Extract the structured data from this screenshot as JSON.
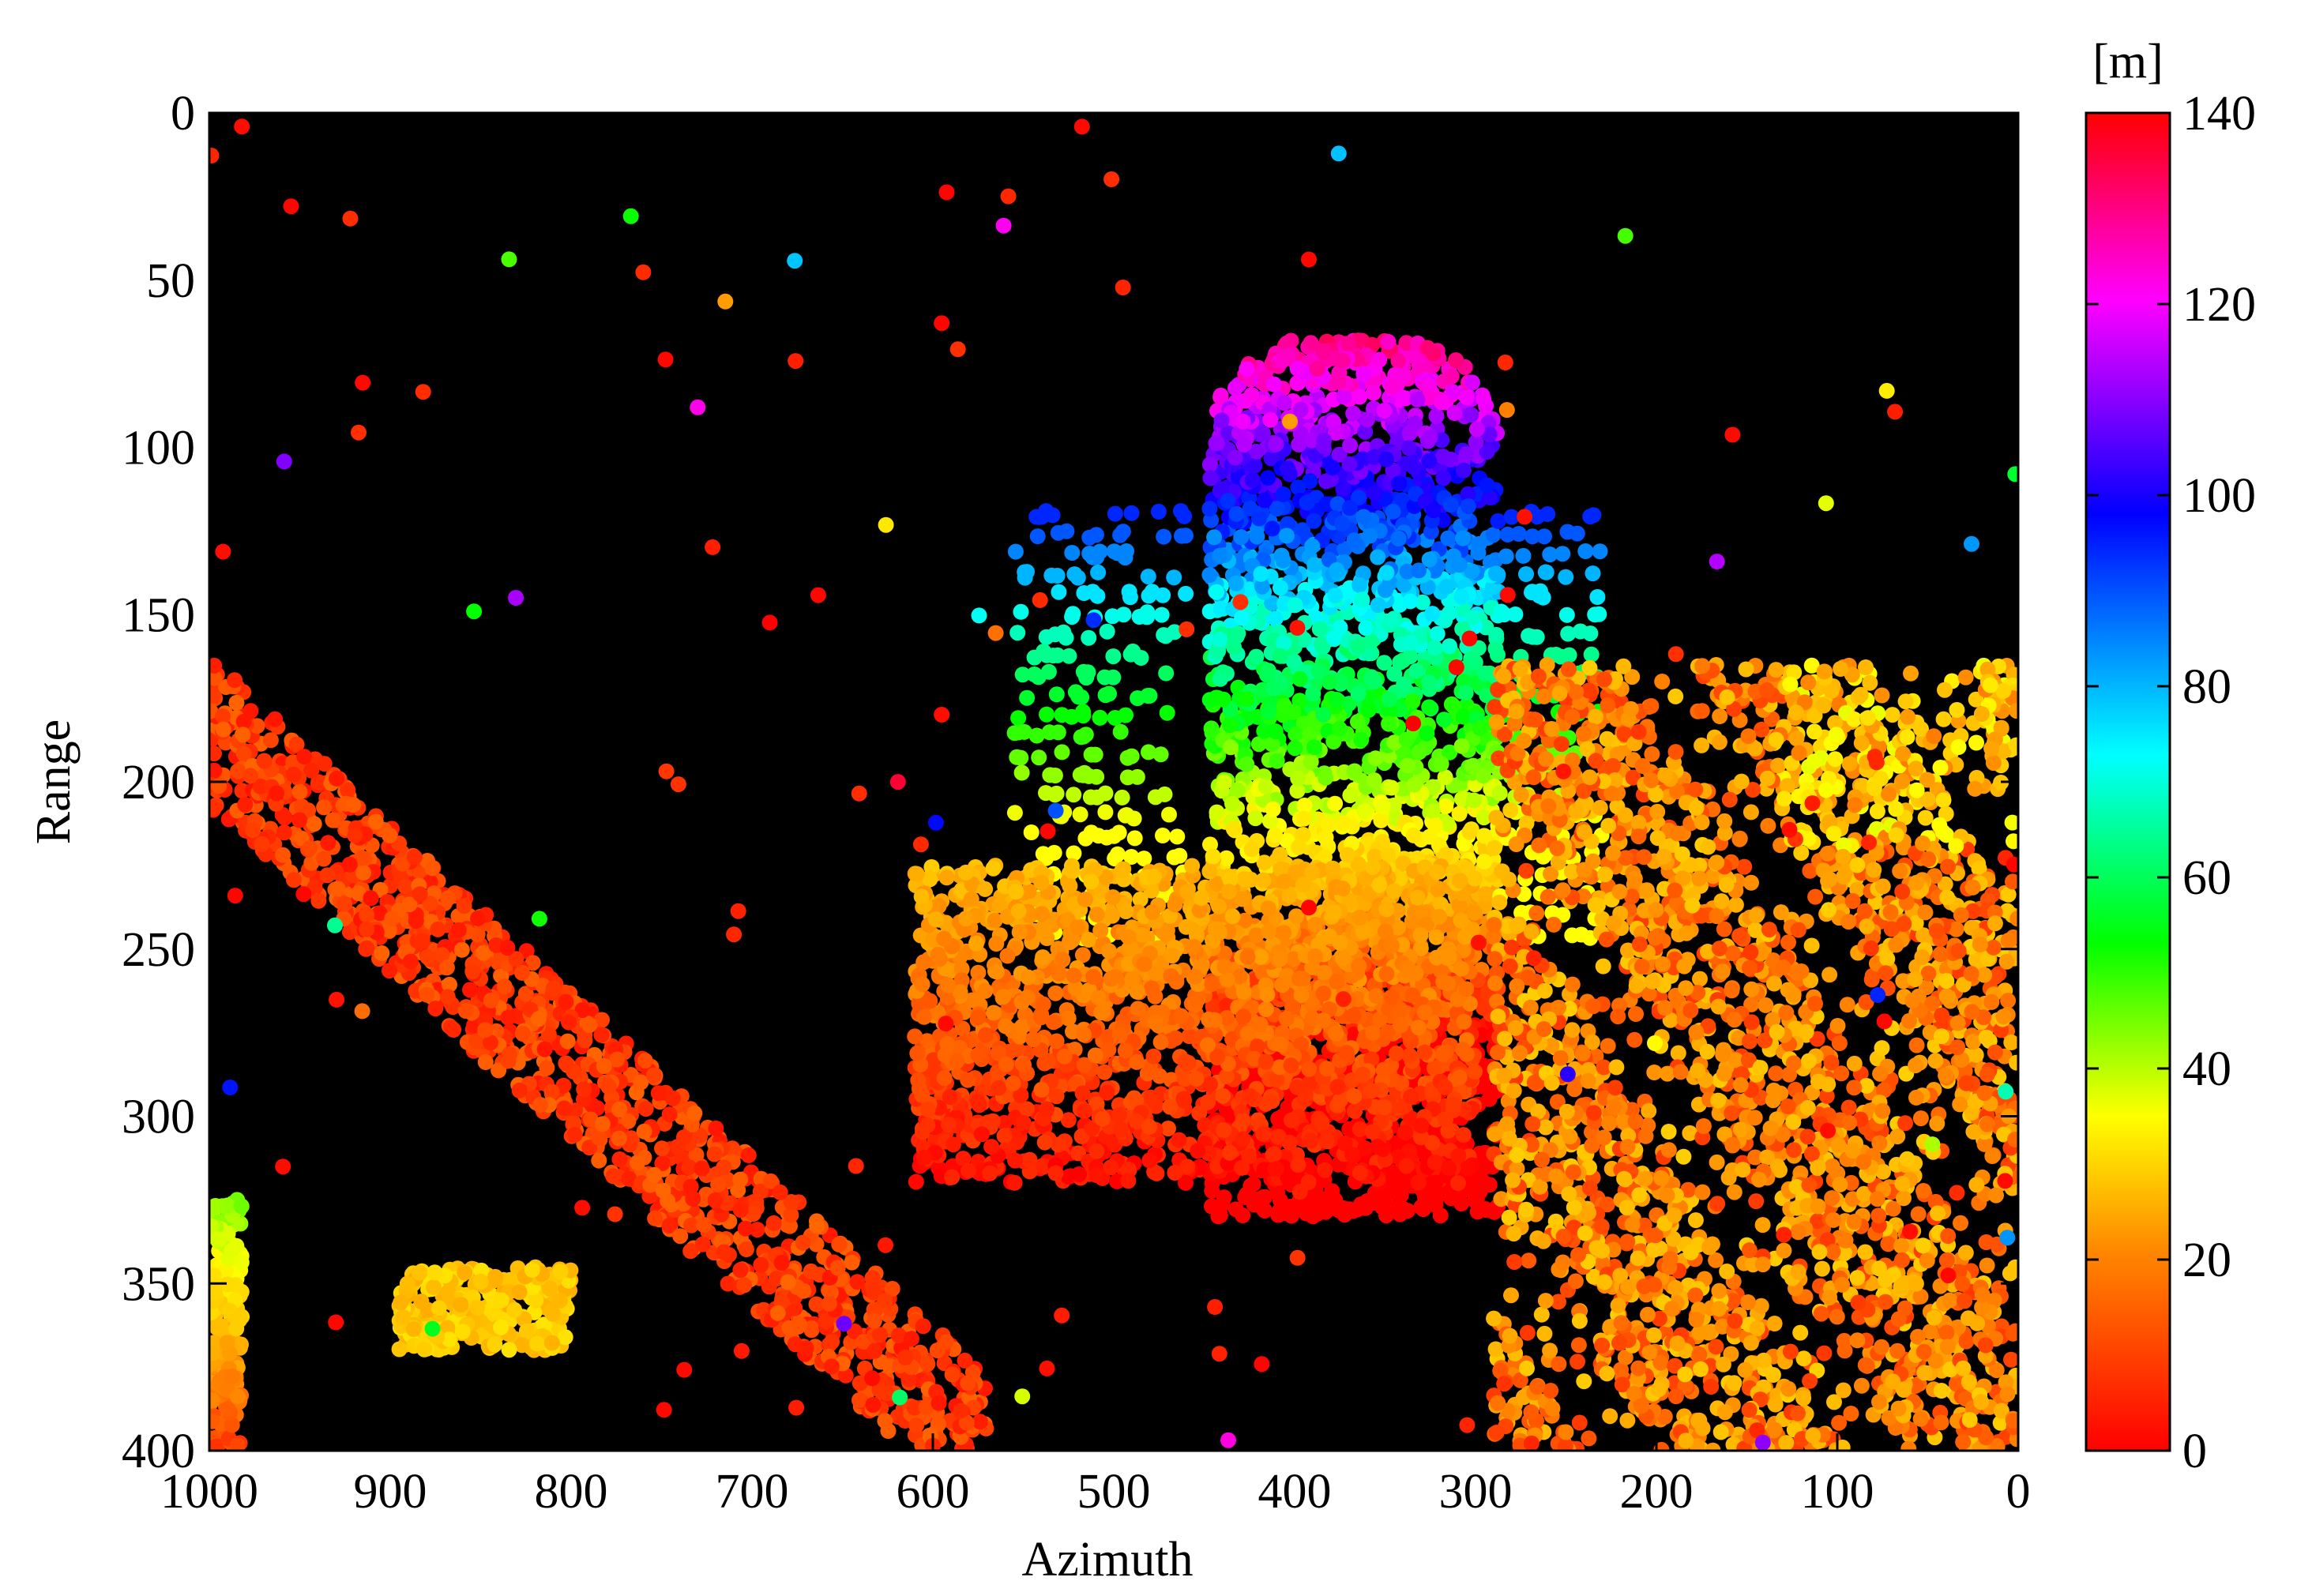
{
  "chart_data": {
    "type": "scatter",
    "title": "",
    "xlabel": "Azimuth",
    "ylabel": "Range",
    "xlim": [
      1000,
      0
    ],
    "ylim": [
      400,
      0
    ],
    "x_reversed": true,
    "y_reversed": true,
    "x_ticks": [
      "1000",
      "900",
      "800",
      "700",
      "600",
      "500",
      "400",
      "300",
      "200",
      "100",
      "0"
    ],
    "y_ticks": [
      "0",
      "50",
      "100",
      "150",
      "200",
      "250",
      "300",
      "350",
      "400"
    ],
    "background": "#000000",
    "grid": false,
    "legend": "none",
    "colorbar": {
      "label": "[m]",
      "range": [
        0,
        140
      ],
      "ticks": [
        "0",
        "20",
        "40",
        "60",
        "80",
        "100",
        "120",
        "140"
      ],
      "colormap": "hsv",
      "colors": [
        "#ff0000",
        "#ff8800",
        "#ffff00",
        "#00ff00",
        "#00ffff",
        "#0000ff",
        "#ff00ff",
        "#ff0000"
      ]
    },
    "clusters": [
      {
        "name": "tower",
        "x_range": [
          290,
          460
        ],
        "y_range": [
          65,
          330
        ],
        "height_range": [
          0,
          130
        ]
      },
      {
        "name": "right structure",
        "x_range": [
          0,
          300
        ],
        "y_range": [
          160,
          400
        ],
        "height_range": [
          5,
          40
        ]
      },
      {
        "name": "left diagonal band",
        "x_range": [
          570,
          1000
        ],
        "y_range": [
          185,
          400
        ],
        "height_range": [
          3,
          15
        ]
      },
      {
        "name": "lower-left block",
        "x_range": [
          800,
          900
        ],
        "y_range": [
          345,
          370
        ],
        "height_range": [
          25,
          35
        ]
      },
      {
        "name": "left edge column",
        "x_range": [
          980,
          1000
        ],
        "y_range": [
          325,
          400
        ],
        "height_range": [
          10,
          50
        ]
      }
    ]
  }
}
